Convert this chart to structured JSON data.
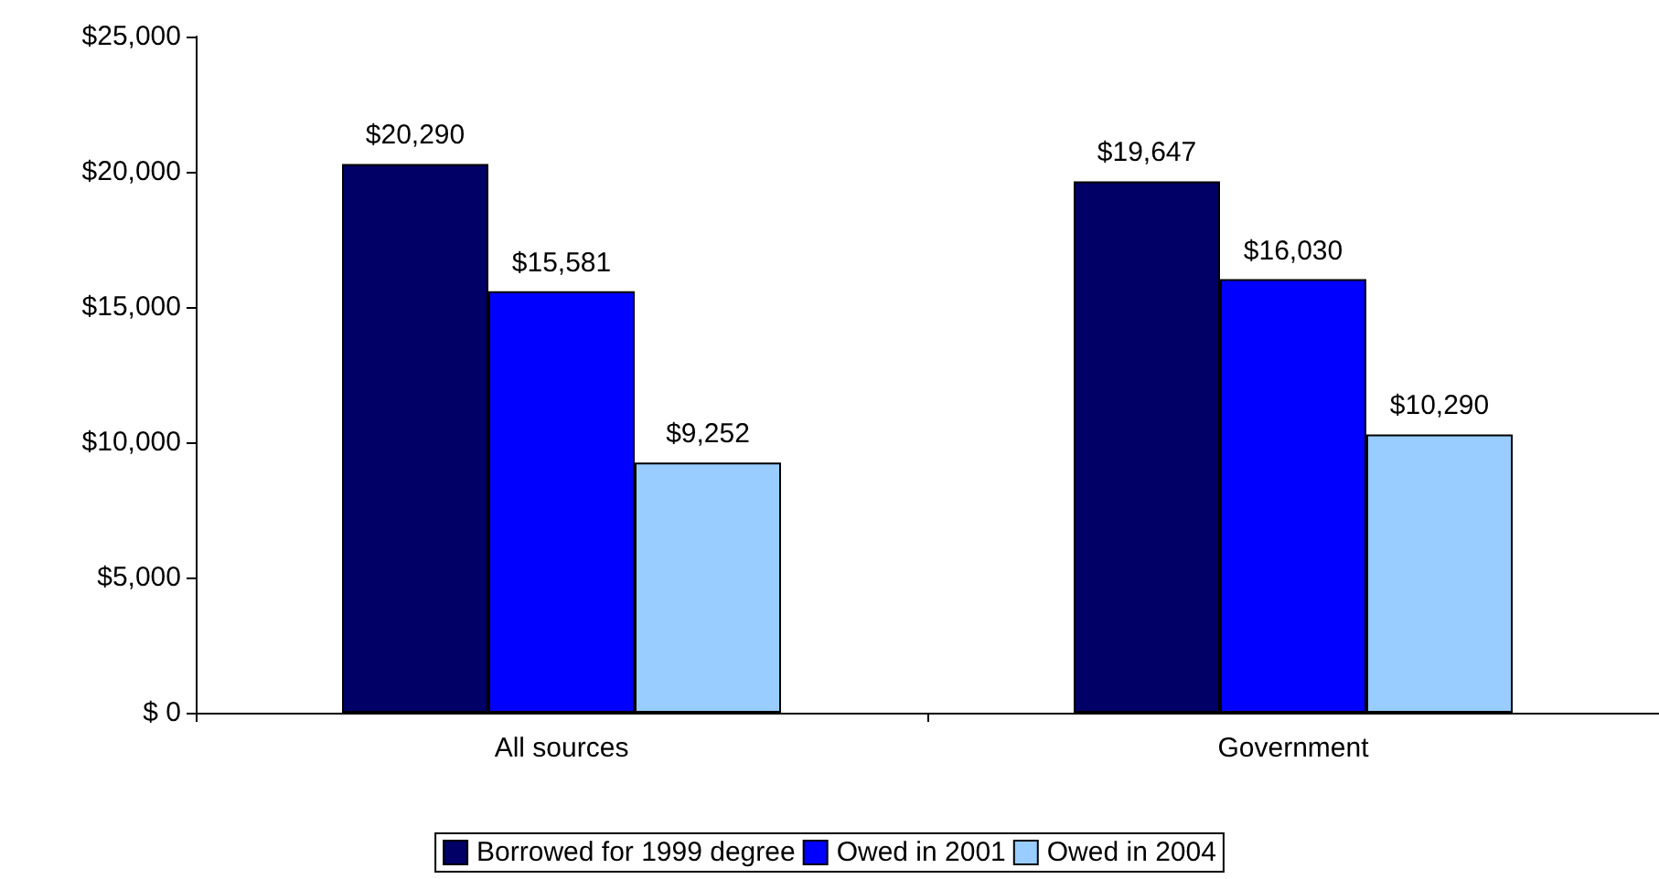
{
  "chart_data": {
    "type": "bar",
    "categories": [
      "All sources",
      "Government"
    ],
    "series": [
      {
        "name": "Borrowed for 1999 degree",
        "color": "#000066",
        "values": [
          20290,
          19647
        ],
        "value_labels": [
          "$20,290",
          "$19,647"
        ]
      },
      {
        "name": "Owed in 2001",
        "color": "#0000ff",
        "values": [
          15581,
          16030
        ],
        "value_labels": [
          "$15,581",
          "$16,030"
        ]
      },
      {
        "name": "Owed in 2004",
        "color": "#99ccff",
        "values": [
          9252,
          10290
        ],
        "value_labels": [
          "$9,252",
          "$10,290"
        ]
      }
    ],
    "ylim": [
      0,
      25000
    ],
    "yticks": [
      {
        "value": 0,
        "label": "$ 0"
      },
      {
        "value": 5000,
        "label": "$5,000"
      },
      {
        "value": 10000,
        "label": "$10,000"
      },
      {
        "value": 15000,
        "label": "$15,000"
      },
      {
        "value": 20000,
        "label": "$20,000"
      },
      {
        "value": 25000,
        "label": "$25,000"
      }
    ],
    "grid": false,
    "legend": "bottom"
  }
}
